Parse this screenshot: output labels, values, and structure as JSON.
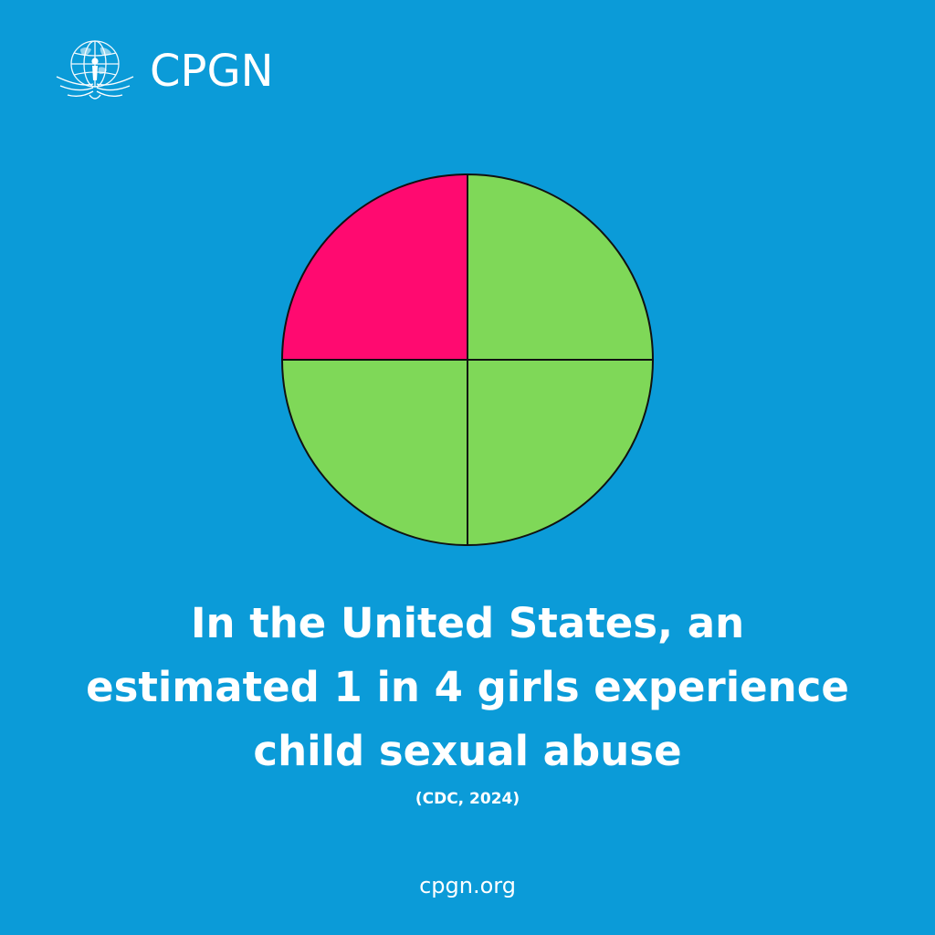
{
  "brand": {
    "logo_icon": "globe-child-wings-icon",
    "name": "CPGN"
  },
  "colors": {
    "background": "#0b9bd8",
    "highlight": "#ff0a70",
    "remainder": "#7fd858",
    "outline": "#111111",
    "text": "#ffffff"
  },
  "chart_data": {
    "type": "pie",
    "title": "",
    "slices": [
      {
        "value": 1,
        "color": "#ff0a70"
      },
      {
        "value": 1,
        "color": "#7fd858"
      },
      {
        "value": 1,
        "color": "#7fd858"
      },
      {
        "value": 1,
        "color": "#7fd858"
      }
    ],
    "highlight_fraction": 0.25,
    "legend": "none"
  },
  "headline": {
    "line1": "In the United States, an",
    "line2": "estimated 1 in 4 girls experience",
    "line3": "child sexual abuse"
  },
  "source": "(CDC, 2024)",
  "footer": {
    "url": "cpgn.org"
  }
}
